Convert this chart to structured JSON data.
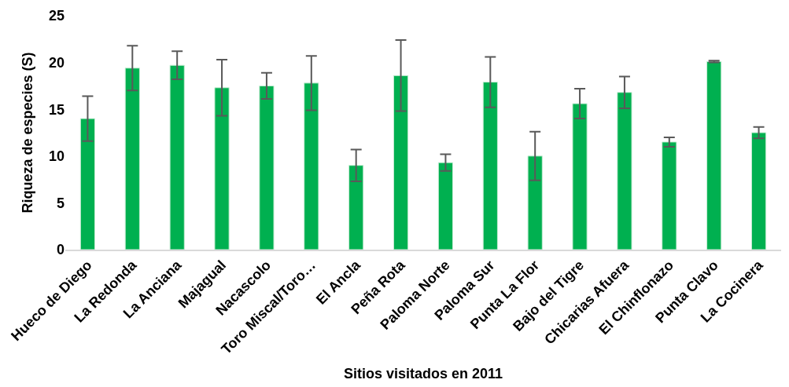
{
  "chart_data": {
    "type": "bar",
    "xlabel": "Sitios visitados en 2011",
    "ylabel": "Riqueza de especies (S)",
    "categories": [
      "Hueco de Diego",
      "La Redonda",
      "La Anciana",
      "Majagual",
      "Nacascolo",
      "Toro Miscal/Toro…",
      "El Ancla",
      "Peña Rota",
      "Paloma Norte",
      "Paloma Sur",
      "Punta La Flor",
      "Bajo del Tigre",
      "Chicarias Afuera",
      "El Chinflonazo",
      "Punta Clavo",
      "La Cocinera"
    ],
    "values": [
      14.0,
      19.4,
      19.7,
      17.3,
      17.5,
      17.8,
      9.0,
      18.6,
      9.3,
      17.9,
      10.0,
      15.6,
      16.8,
      11.5,
      20.1,
      12.5
    ],
    "errors": [
      2.4,
      2.4,
      1.5,
      3.0,
      1.4,
      2.9,
      1.7,
      3.8,
      0.9,
      2.7,
      2.6,
      1.6,
      1.7,
      0.5,
      0.1,
      0.6
    ],
    "color": "#00b050",
    "ylim": [
      0,
      25
    ],
    "yticks": [
      0,
      5,
      10,
      15,
      20,
      25
    ]
  }
}
